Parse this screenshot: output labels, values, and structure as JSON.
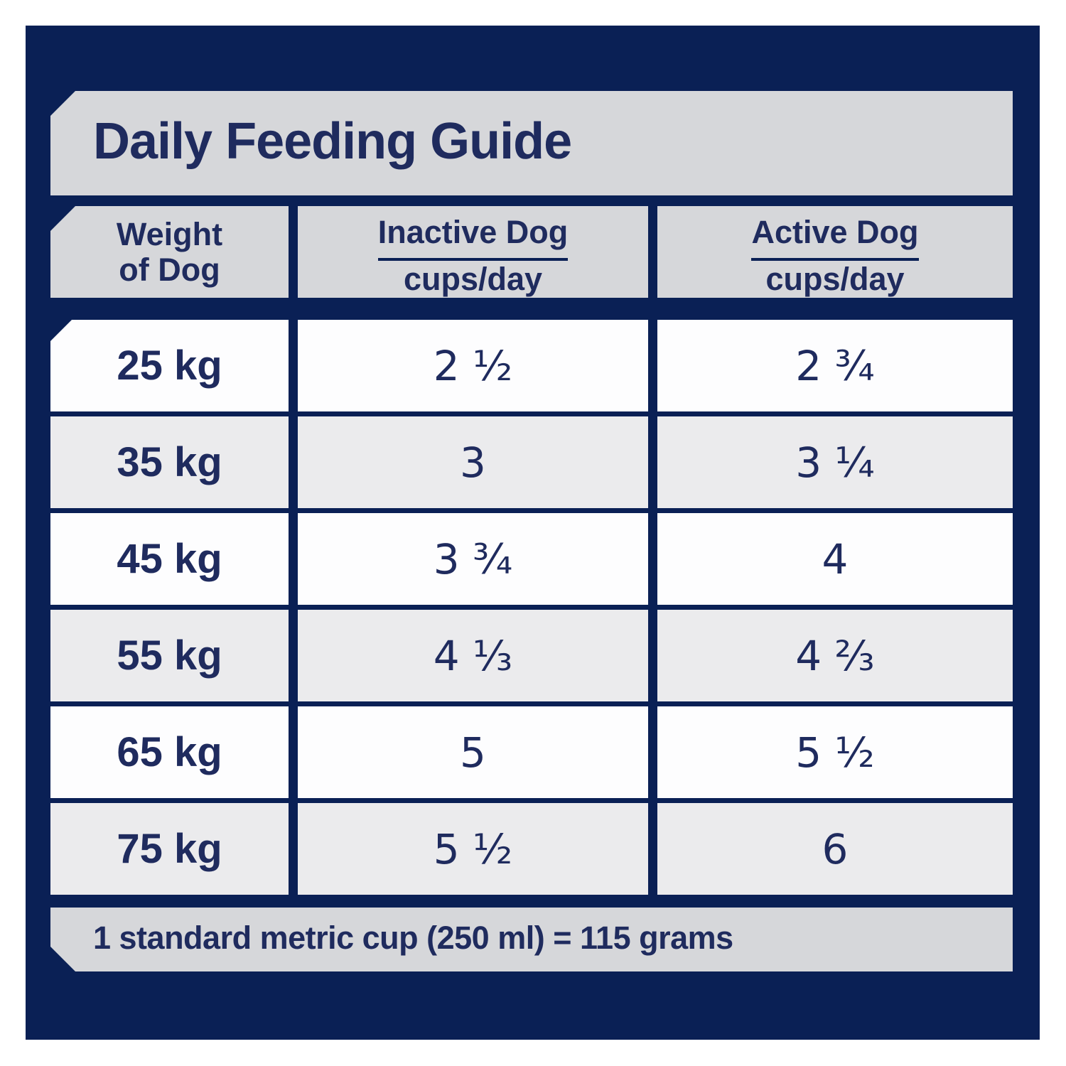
{
  "title": "Daily Feeding Guide",
  "table": {
    "weight_header": {
      "line1": "Weight",
      "line2": "of Dog"
    },
    "columns": [
      {
        "label": "Inactive Dog",
        "sublabel": "cups/day"
      },
      {
        "label": "Active Dog",
        "sublabel": "cups/day"
      }
    ],
    "rows": [
      {
        "weight": "25 kg",
        "inactive": "2 ½",
        "active": "2 ¾"
      },
      {
        "weight": "35 kg",
        "inactive": "3",
        "active": "3 ¼"
      },
      {
        "weight": "45 kg",
        "inactive": "3 ¾",
        "active": "4"
      },
      {
        "weight": "55 kg",
        "inactive": "4 ⅓",
        "active": "4 ⅔"
      },
      {
        "weight": "65 kg",
        "inactive": "5",
        "active": "5 ½"
      },
      {
        "weight": "75 kg",
        "inactive": "5 ½",
        "active": "6"
      }
    ]
  },
  "footer_note": "1 standard metric cup (250 ml) = 115 grams",
  "colors": {
    "panel_navy": "#0a2055",
    "text_navy": "#1f2b5e",
    "header_gray": "#d6d7da",
    "row_gray": "#ebebed",
    "row_white": "#fdfdfe"
  }
}
